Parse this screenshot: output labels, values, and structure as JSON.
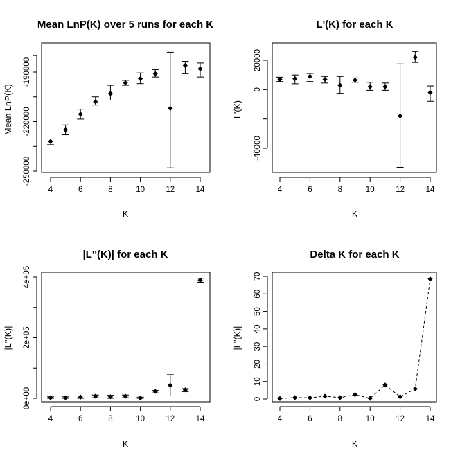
{
  "chart_data": [
    {
      "type": "scatter",
      "title": "Mean LnP(K) over 5 runs for each K",
      "xlabel": "K",
      "ylabel": "Mean LnP(K)",
      "x": [
        4,
        5,
        6,
        7,
        8,
        9,
        10,
        11,
        12,
        13,
        14
      ],
      "y": [
        -232000,
        -225000,
        -215500,
        -208000,
        -203000,
        -196500,
        -194000,
        -191000,
        -212000,
        -186000,
        -188000
      ],
      "err_low": [
        -234000,
        -228000,
        -218500,
        -210000,
        -207000,
        -198000,
        -197000,
        -193000,
        -248000,
        -191000,
        -193000
      ],
      "err_high": [
        -230500,
        -222000,
        -212500,
        -205000,
        -198000,
        -195000,
        -190500,
        -188500,
        -178000,
        -183500,
        -184500
      ],
      "xlim": [
        4,
        14
      ],
      "ylim": [
        -250000,
        -180000
      ],
      "xticks": [
        4,
        6,
        8,
        10,
        12,
        14
      ],
      "xtick_labels": [
        "4",
        "6",
        "8",
        "10",
        "12",
        "14"
      ],
      "yticks": [
        -250000,
        -220000,
        -190000
      ],
      "ytick_labels": [
        "-250000",
        "-220000",
        "-190000"
      ],
      "yticks_minor": [
        -235000,
        -205000,
        -180000
      ],
      "errorbars": true,
      "connect_line": false,
      "grid": false
    },
    {
      "type": "scatter",
      "title": "L'(K) for each K",
      "xlabel": "K",
      "ylabel": "L'(K)",
      "x": [
        4,
        5,
        6,
        7,
        8,
        9,
        10,
        11,
        12,
        13,
        14
      ],
      "y": [
        7000,
        7500,
        9000,
        7000,
        3000,
        6500,
        2000,
        2000,
        -18000,
        22000,
        -2000
      ],
      "err_low": [
        5500,
        4000,
        5500,
        4500,
        -2500,
        5000,
        -500,
        -500,
        -53000,
        18500,
        -8000
      ],
      "err_high": [
        8500,
        10000,
        11000,
        9000,
        9000,
        8000,
        5000,
        4500,
        17500,
        26000,
        2500
      ],
      "xlim": [
        4,
        14
      ],
      "ylim": [
        -50000,
        25000
      ],
      "xticks": [
        4,
        6,
        8,
        10,
        12,
        14
      ],
      "xtick_labels": [
        "4",
        "6",
        "8",
        "10",
        "12",
        "14"
      ],
      "yticks": [
        -40000,
        0,
        20000
      ],
      "ytick_labels": [
        "-40000",
        "0",
        "20000"
      ],
      "yticks_minor": [
        -20000
      ],
      "errorbars": true,
      "connect_line": false,
      "grid": false
    },
    {
      "type": "scatter",
      "title": "|L''(K)| for each K",
      "xlabel": "K",
      "ylabel": "|L''(K)|",
      "x": [
        4,
        5,
        6,
        7,
        8,
        9,
        10,
        11,
        12,
        13,
        14
      ],
      "y": [
        2000,
        2000,
        4000,
        7000,
        5000,
        7000,
        1000,
        23000,
        43000,
        28000,
        390000
      ],
      "err_low": [
        0,
        0,
        0,
        2000,
        0,
        2000,
        0,
        18000,
        8000,
        22000,
        383000
      ],
      "err_high": [
        5000,
        5000,
        8000,
        11000,
        10000,
        11000,
        4000,
        26000,
        78000,
        32000,
        396000
      ],
      "xlim": [
        4,
        14
      ],
      "ylim": [
        0,
        400000
      ],
      "xticks": [
        4,
        6,
        8,
        10,
        12,
        14
      ],
      "xtick_labels": [
        "4",
        "6",
        "8",
        "10",
        "12",
        "14"
      ],
      "yticks": [
        0,
        200000,
        400000
      ],
      "ytick_labels": [
        "0e+00",
        "2e+05",
        "4e+05"
      ],
      "yticks_minor": [
        100000,
        300000
      ],
      "errorbars": true,
      "connect_line": false,
      "grid": false
    },
    {
      "type": "line",
      "title": "Delta K for each K",
      "xlabel": "K",
      "ylabel": "|L''(K)|",
      "x": [
        4,
        5,
        6,
        7,
        8,
        9,
        10,
        11,
        12,
        13,
        14
      ],
      "y": [
        0.3,
        0.8,
        0.7,
        1.6,
        0.8,
        2.5,
        0.4,
        8.0,
        1.3,
        5.8,
        68.5
      ],
      "xlim": [
        4,
        14
      ],
      "ylim": [
        0,
        70
      ],
      "xticks": [
        4,
        6,
        8,
        10,
        12,
        14
      ],
      "xtick_labels": [
        "4",
        "6",
        "8",
        "10",
        "12",
        "14"
      ],
      "yticks": [
        0,
        10,
        20,
        30,
        40,
        50,
        60,
        70
      ],
      "ytick_labels": [
        "0",
        "10",
        "20",
        "30",
        "40",
        "50",
        "60",
        "70"
      ],
      "yticks_minor": [],
      "errorbars": false,
      "connect_line": true,
      "line_style": "dashed",
      "grid": false
    }
  ]
}
